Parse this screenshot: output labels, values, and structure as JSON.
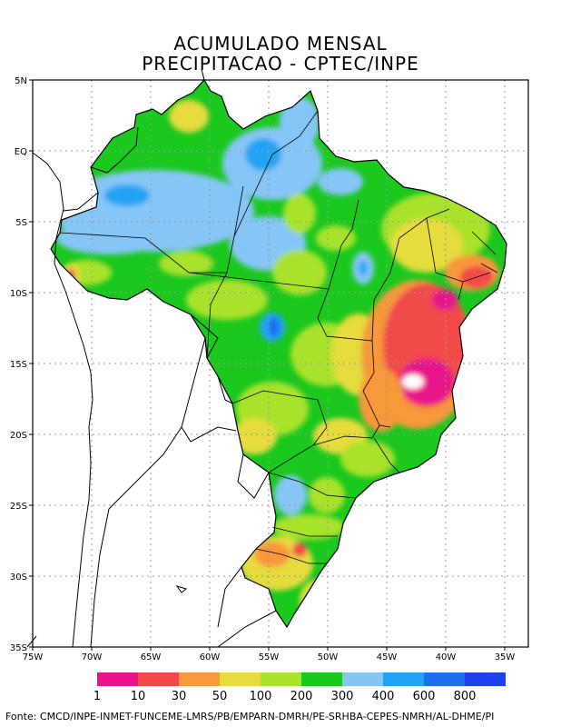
{
  "title_line1": "ACUMULADO MENSAL",
  "title_line2": "PRECIPITACAO - CPTEC/INPE",
  "lat_labels": [
    "5N",
    "EQ",
    "5S",
    "10S",
    "15S",
    "20S",
    "25S",
    "30S",
    "35S"
  ],
  "lon_labels": [
    "75W",
    "70W",
    "65W",
    "60W",
    "55W",
    "50W",
    "45W",
    "40W",
    "35W"
  ],
  "colorbar": {
    "colors": [
      "#e8128a",
      "#f24848",
      "#f7983a",
      "#e6dc3e",
      "#a8e22a",
      "#1ac81e",
      "#86c6f7",
      "#21a4f5",
      "#1e6ef0",
      "#2040f0"
    ],
    "labels": [
      "1",
      "10",
      "30",
      "50",
      "100",
      "200",
      "300",
      "400",
      "600",
      "800"
    ]
  },
  "source_text": "Fonte: CMCD/INPE-INMET-FUNCEME-LMRS/PB/EMPARN-DMRH/PE-SRHBA-CEPES-NMRH/AL-DHME/PI"
}
